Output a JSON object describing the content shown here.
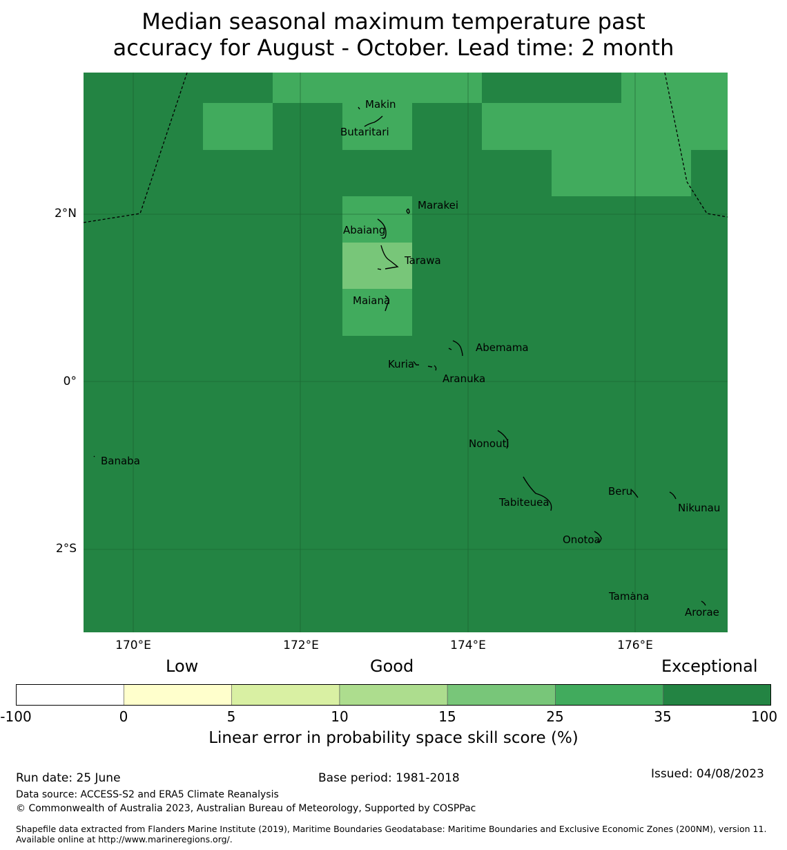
{
  "title": {
    "line1": "Median seasonal maximum temperature past",
    "line2": "accuracy for August - October. Lead time: 2 month"
  },
  "map": {
    "lon_labels": [
      "170°E",
      "172°E",
      "174°E",
      "176°E"
    ],
    "lat_labels": [
      "2°N",
      "0°",
      "2°S"
    ],
    "places": [
      "Makin",
      "Butaritari",
      "Marakei",
      "Abaiang",
      "Tarawa",
      "Maiana",
      "Abemama",
      "Kuria",
      "Aranuka",
      "Nonouti",
      "Banaba",
      "Beru",
      "Tabiteuea",
      "Nikunau",
      "Onotoa",
      "Tamana",
      "Arorae"
    ],
    "colors": {
      "exceptional": "#238443",
      "good_high": "#41ab5d",
      "good_mid": "#78c679"
    }
  },
  "legend": {
    "categories": [
      "Low",
      "Good",
      "Exceptional"
    ],
    "ticks": [
      "-100",
      "0",
      "5",
      "10",
      "15",
      "25",
      "35",
      "100"
    ],
    "colors": [
      "#ffffff",
      "#ffffcc",
      "#d9f0a3",
      "#addd8e",
      "#78c679",
      "#41ab5d",
      "#238443"
    ],
    "title": "Linear error in probability space skill score (%)"
  },
  "footer": {
    "run_date": "Run date: 25 June",
    "base_period": "Base period: 1981-2018",
    "issued": "Issued: 04/08/2023",
    "data_source": "Data source: ACCESS-S2 and ERA5 Climate Reanalysis",
    "copyright": "© Commonwealth of Australia 2023, Australian Bureau of Meteorology, Supported by COSPPac",
    "shapefile": "Shapefile data extracted from Flanders Marine Institute (2019), Maritime Boundaries Geodatabase: Maritime Boundaries and Exclusive Economic Zones (200NM), version 11. Available online at http://www.marineregions.org/."
  }
}
